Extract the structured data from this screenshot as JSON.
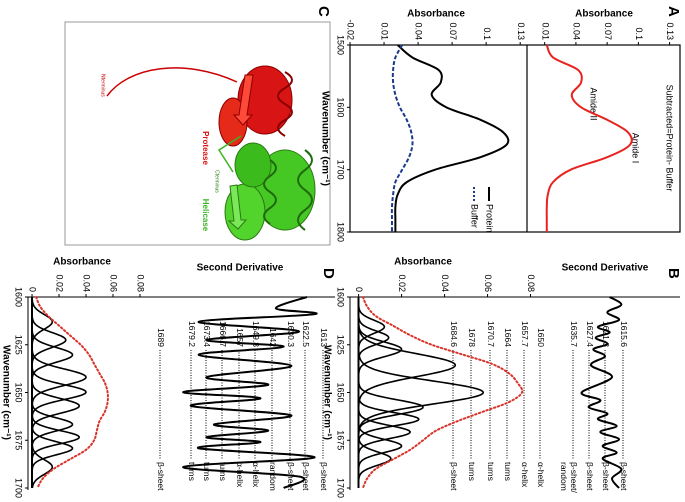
{
  "panel_labels": [
    "A",
    "B",
    "C",
    "D"
  ],
  "structure": {
    "helicase": "Helicase",
    "protease": "Protease",
    "n_terminus": "Nterminus",
    "c_terminus": "Cterminus"
  },
  "chart_data": [
    {
      "type": "line",
      "title": "Subtracted=Protein- Buffer",
      "y_label": "Absorbance",
      "annotations": [
        "Amide II",
        "Amide I"
      ],
      "x": [
        1500,
        1520,
        1540,
        1560,
        1580,
        1600,
        1620,
        1640,
        1660,
        1680,
        1700,
        1720,
        1740,
        1760,
        1780,
        1800
      ],
      "series": [
        {
          "color": "#e8231e",
          "values": [
            0.012,
            0.018,
            0.042,
            0.045,
            0.036,
            0.045,
            0.07,
            0.09,
            0.092,
            0.07,
            0.035,
            0.018,
            0.013,
            0.012,
            0.012,
            0.012
          ]
        }
      ],
      "xlim": [
        1500,
        1800
      ],
      "ylim": [
        -0.007,
        0.14
      ],
      "yticks": [
        0.01,
        0.04,
        0.07,
        0.1,
        0.13
      ]
    },
    {
      "type": "line",
      "x_label": "Wavenumber (cm⁻¹)",
      "y_label": "Absorbance",
      "x": [
        1500,
        1520,
        1540,
        1560,
        1580,
        1600,
        1620,
        1640,
        1660,
        1680,
        1700,
        1720,
        1740,
        1760,
        1780,
        1800
      ],
      "series": [
        {
          "name": "Protein",
          "color": "#000000",
          "values": [
            0.022,
            0.035,
            0.058,
            0.06,
            0.052,
            0.065,
            0.095,
            0.115,
            0.118,
            0.095,
            0.055,
            0.03,
            0.022,
            0.02,
            0.02,
            0.02
          ]
        },
        {
          "name": "Buffer",
          "color": "#1a3a8c",
          "dash": true,
          "values": [
            0.026,
            0.02,
            0.018,
            0.018,
            0.02,
            0.024,
            0.03,
            0.034,
            0.035,
            0.032,
            0.026,
            0.02,
            0.018,
            0.017,
            0.017,
            0.017
          ]
        }
      ],
      "legend": "upper right",
      "xlim": [
        1500,
        1800
      ],
      "xticks": [
        1500,
        1600,
        1700,
        1800
      ],
      "ylim": [
        -0.02,
        0.136
      ],
      "yticks": [
        -0.02,
        0.01,
        0.04,
        0.07,
        0.1,
        0.13
      ]
    },
    {
      "type": "line",
      "x_label": "Wavenumber (cm⁻¹)",
      "y_label": "Absorbance",
      "xlim": [
        1600,
        1700
      ],
      "xticks": [
        1600,
        1625,
        1650,
        1675,
        1700
      ],
      "ylim": [
        -0.004,
        0.083
      ],
      "yticks": [
        0,
        0.02,
        0.04,
        0.06,
        0.08
      ],
      "second_derivative": {
        "label": "Second Derivative",
        "color": "#000000",
        "ylim": [
          -3,
          3
        ],
        "x": [
          1600,
          1604,
          1608,
          1612,
          1615.6,
          1618.5,
          1621.3,
          1624.5,
          1627.4,
          1631,
          1635.7,
          1642,
          1650,
          1654,
          1657.7,
          1661,
          1664,
          1667.5,
          1670.7,
          1674.5,
          1678,
          1681.5,
          1684.6,
          1690,
          1695,
          1700
        ],
        "values": [
          0.2,
          0.7,
          0.1,
          0.6,
          -0.3,
          0.2,
          -0.4,
          0.1,
          -0.5,
          0,
          -0.6,
          0.3,
          -1,
          -0.2,
          -0.7,
          0.1,
          -0.3,
          0.5,
          -0.2,
          0.6,
          -0.1,
          0.5,
          -0.1,
          0.7,
          0.3,
          0.6
        ]
      },
      "envelope": {
        "color": "#d9342b",
        "x": [
          1600,
          1605,
          1610,
          1615,
          1620,
          1625,
          1630,
          1635,
          1640,
          1645,
          1650,
          1655,
          1660,
          1665,
          1670,
          1675,
          1680,
          1685,
          1690,
          1695,
          1700
        ],
        "values": [
          0.002,
          0.004,
          0.008,
          0.016,
          0.024,
          0.034,
          0.048,
          0.062,
          0.07,
          0.074,
          0.076,
          0.07,
          0.058,
          0.046,
          0.036,
          0.03,
          0.024,
          0.016,
          0.008,
          0.004,
          0.002
        ]
      },
      "component_color": "#000000",
      "components": [
        {
          "center": 1615.6,
          "height": 0.012,
          "width": 8,
          "assignment": "β-sheet"
        },
        {
          "center": 1621.3,
          "height": 0.014,
          "width": 8,
          "assignment": "β-sheet"
        },
        {
          "center": 1627.4,
          "height": 0.02,
          "width": 9,
          "assignment": "β-sheet"
        },
        {
          "center": 1635.7,
          "height": 0.045,
          "width": 14,
          "assignment": "β-sheet/ random"
        },
        {
          "center": 1650,
          "height": 0.058,
          "width": 14,
          "assignment": "α-helix"
        },
        {
          "center": 1657.7,
          "height": 0.03,
          "width": 9,
          "assignment": "α-helix"
        },
        {
          "center": 1664,
          "height": 0.028,
          "width": 8,
          "assignment": "turns"
        },
        {
          "center": 1670.7,
          "height": 0.024,
          "width": 8,
          "assignment": "turns"
        },
        {
          "center": 1678,
          "height": 0.02,
          "width": 8,
          "assignment": "turns"
        },
        {
          "center": 1684.6,
          "height": 0.015,
          "width": 8,
          "assignment": "β-sheet"
        }
      ]
    },
    {
      "type": "line",
      "x_label": "Wavenumber (cm⁻¹)",
      "y_label": "Absorbance",
      "xlim": [
        1600,
        1700
      ],
      "xticks": [
        1600,
        1625,
        1650,
        1675,
        1700
      ],
      "ylim": [
        -0.003,
        0.08
      ],
      "yticks": [
        0,
        0.02,
        0.04,
        0.06,
        0.08
      ],
      "second_derivative": {
        "label": "Second Derivative",
        "color": "#000000",
        "ylim": [
          -1.1,
          1.1
        ],
        "x": [
          1600,
          1606,
          1609,
          1613,
          1618,
          1622.5,
          1626,
          1630.3,
          1636,
          1642,
          1646,
          1649.8,
          1653,
          1657,
          1662,
          1666.7,
          1670,
          1673.4,
          1676,
          1679.2,
          1684,
          1689,
          1694,
          1700
        ],
        "values": [
          0.8,
          0.4,
          0.9,
          -0.6,
          0.7,
          -0.5,
          0.5,
          -0.6,
          0.6,
          -0.5,
          0.3,
          -0.8,
          0.2,
          -0.7,
          0.6,
          -0.4,
          0.3,
          -0.5,
          0.2,
          -0.6,
          0.9,
          -0.8,
          0.7,
          0.5
        ]
      },
      "envelope": {
        "color": "#d9342b",
        "x": [
          1600,
          1605,
          1610,
          1615,
          1620,
          1625,
          1630,
          1635,
          1640,
          1645,
          1650,
          1655,
          1660,
          1665,
          1670,
          1675,
          1680,
          1685,
          1690,
          1695,
          1700
        ],
        "values": [
          0.003,
          0.006,
          0.012,
          0.02,
          0.028,
          0.036,
          0.042,
          0.046,
          0.05,
          0.054,
          0.056,
          0.056,
          0.054,
          0.05,
          0.048,
          0.046,
          0.04,
          0.028,
          0.016,
          0.008,
          0.004
        ]
      },
      "component_color": "#000000",
      "components": [
        {
          "center": 1613,
          "height": 0.015,
          "width": 9,
          "assignment": "β-sheet"
        },
        {
          "center": 1622.5,
          "height": 0.025,
          "width": 9,
          "assignment": "β-sheet"
        },
        {
          "center": 1630.3,
          "height": 0.03,
          "width": 9,
          "assignment": "β-sheet"
        },
        {
          "center": 1642,
          "height": 0.04,
          "width": 10,
          "assignment": "random"
        },
        {
          "center": 1649.8,
          "height": 0.04,
          "width": 9,
          "assignment": "α-helix"
        },
        {
          "center": 1657,
          "height": 0.035,
          "width": 9,
          "assignment": "α-helix"
        },
        {
          "center": 1666.7,
          "height": 0.03,
          "width": 8,
          "assignment": "turns"
        },
        {
          "center": 1673.4,
          "height": 0.035,
          "width": 8,
          "assignment": "turns"
        },
        {
          "center": 1679.2,
          "height": 0.03,
          "width": 8,
          "assignment": "turns"
        },
        {
          "center": 1689,
          "height": 0.015,
          "width": 9,
          "assignment": "β-sheet"
        }
      ]
    }
  ]
}
